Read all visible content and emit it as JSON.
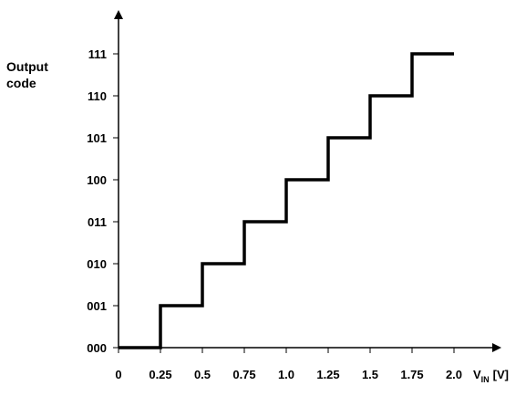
{
  "chart_data": {
    "type": "line",
    "step": true,
    "ylabel_lines": [
      "Output",
      "code"
    ],
    "xlabel_main": "V",
    "xlabel_sub": "IN",
    "xlabel_unit": "[V]",
    "x_ticks": [
      0,
      0.25,
      0.5,
      0.75,
      1.0,
      1.25,
      1.5,
      1.75,
      2.0
    ],
    "x_tick_labels": [
      "0",
      "0.25",
      "0.5",
      "0.75",
      "1.0",
      "1.25",
      "1.5",
      "1.75",
      "2.0"
    ],
    "y_tick_labels": [
      "000",
      "001",
      "010",
      "011",
      "100",
      "101",
      "110",
      "111"
    ],
    "x": [
      0,
      0.25,
      0.25,
      0.5,
      0.5,
      0.75,
      0.75,
      1.0,
      1.0,
      1.25,
      1.25,
      1.5,
      1.5,
      1.75,
      1.75,
      2.0
    ],
    "y": [
      0,
      0,
      1,
      1,
      2,
      2,
      3,
      3,
      4,
      4,
      5,
      5,
      6,
      6,
      7,
      7
    ],
    "xlim": [
      0,
      2.0
    ],
    "ylim": [
      0,
      7
    ],
    "grid": false,
    "legend": "none"
  }
}
